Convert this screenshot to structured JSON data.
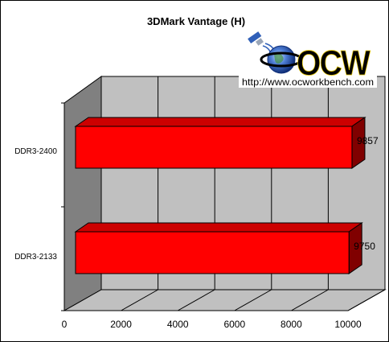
{
  "chart_data": {
    "type": "bar",
    "orientation": "horizontal",
    "style": "3d",
    "title": "3DMark Vantage (H)",
    "categories": [
      "DDR3-2400",
      "DDR3-2133"
    ],
    "values": [
      9857,
      9750
    ],
    "data_labels": [
      "9857",
      "9750"
    ],
    "xlim": [
      0,
      10000
    ],
    "x_ticks": [
      "0",
      "2000",
      "4000",
      "6000",
      "8000",
      "10000"
    ],
    "grid": true,
    "colors": {
      "bar": "#ff0000",
      "bar_top": "#cc0000",
      "bar_side": "#800000",
      "wall": "#c0c0c0",
      "side_wall": "#808080",
      "floor": "#c0c0c0"
    }
  },
  "logo": {
    "text": "OCW",
    "url": "http://www.ocworkbench.com"
  }
}
